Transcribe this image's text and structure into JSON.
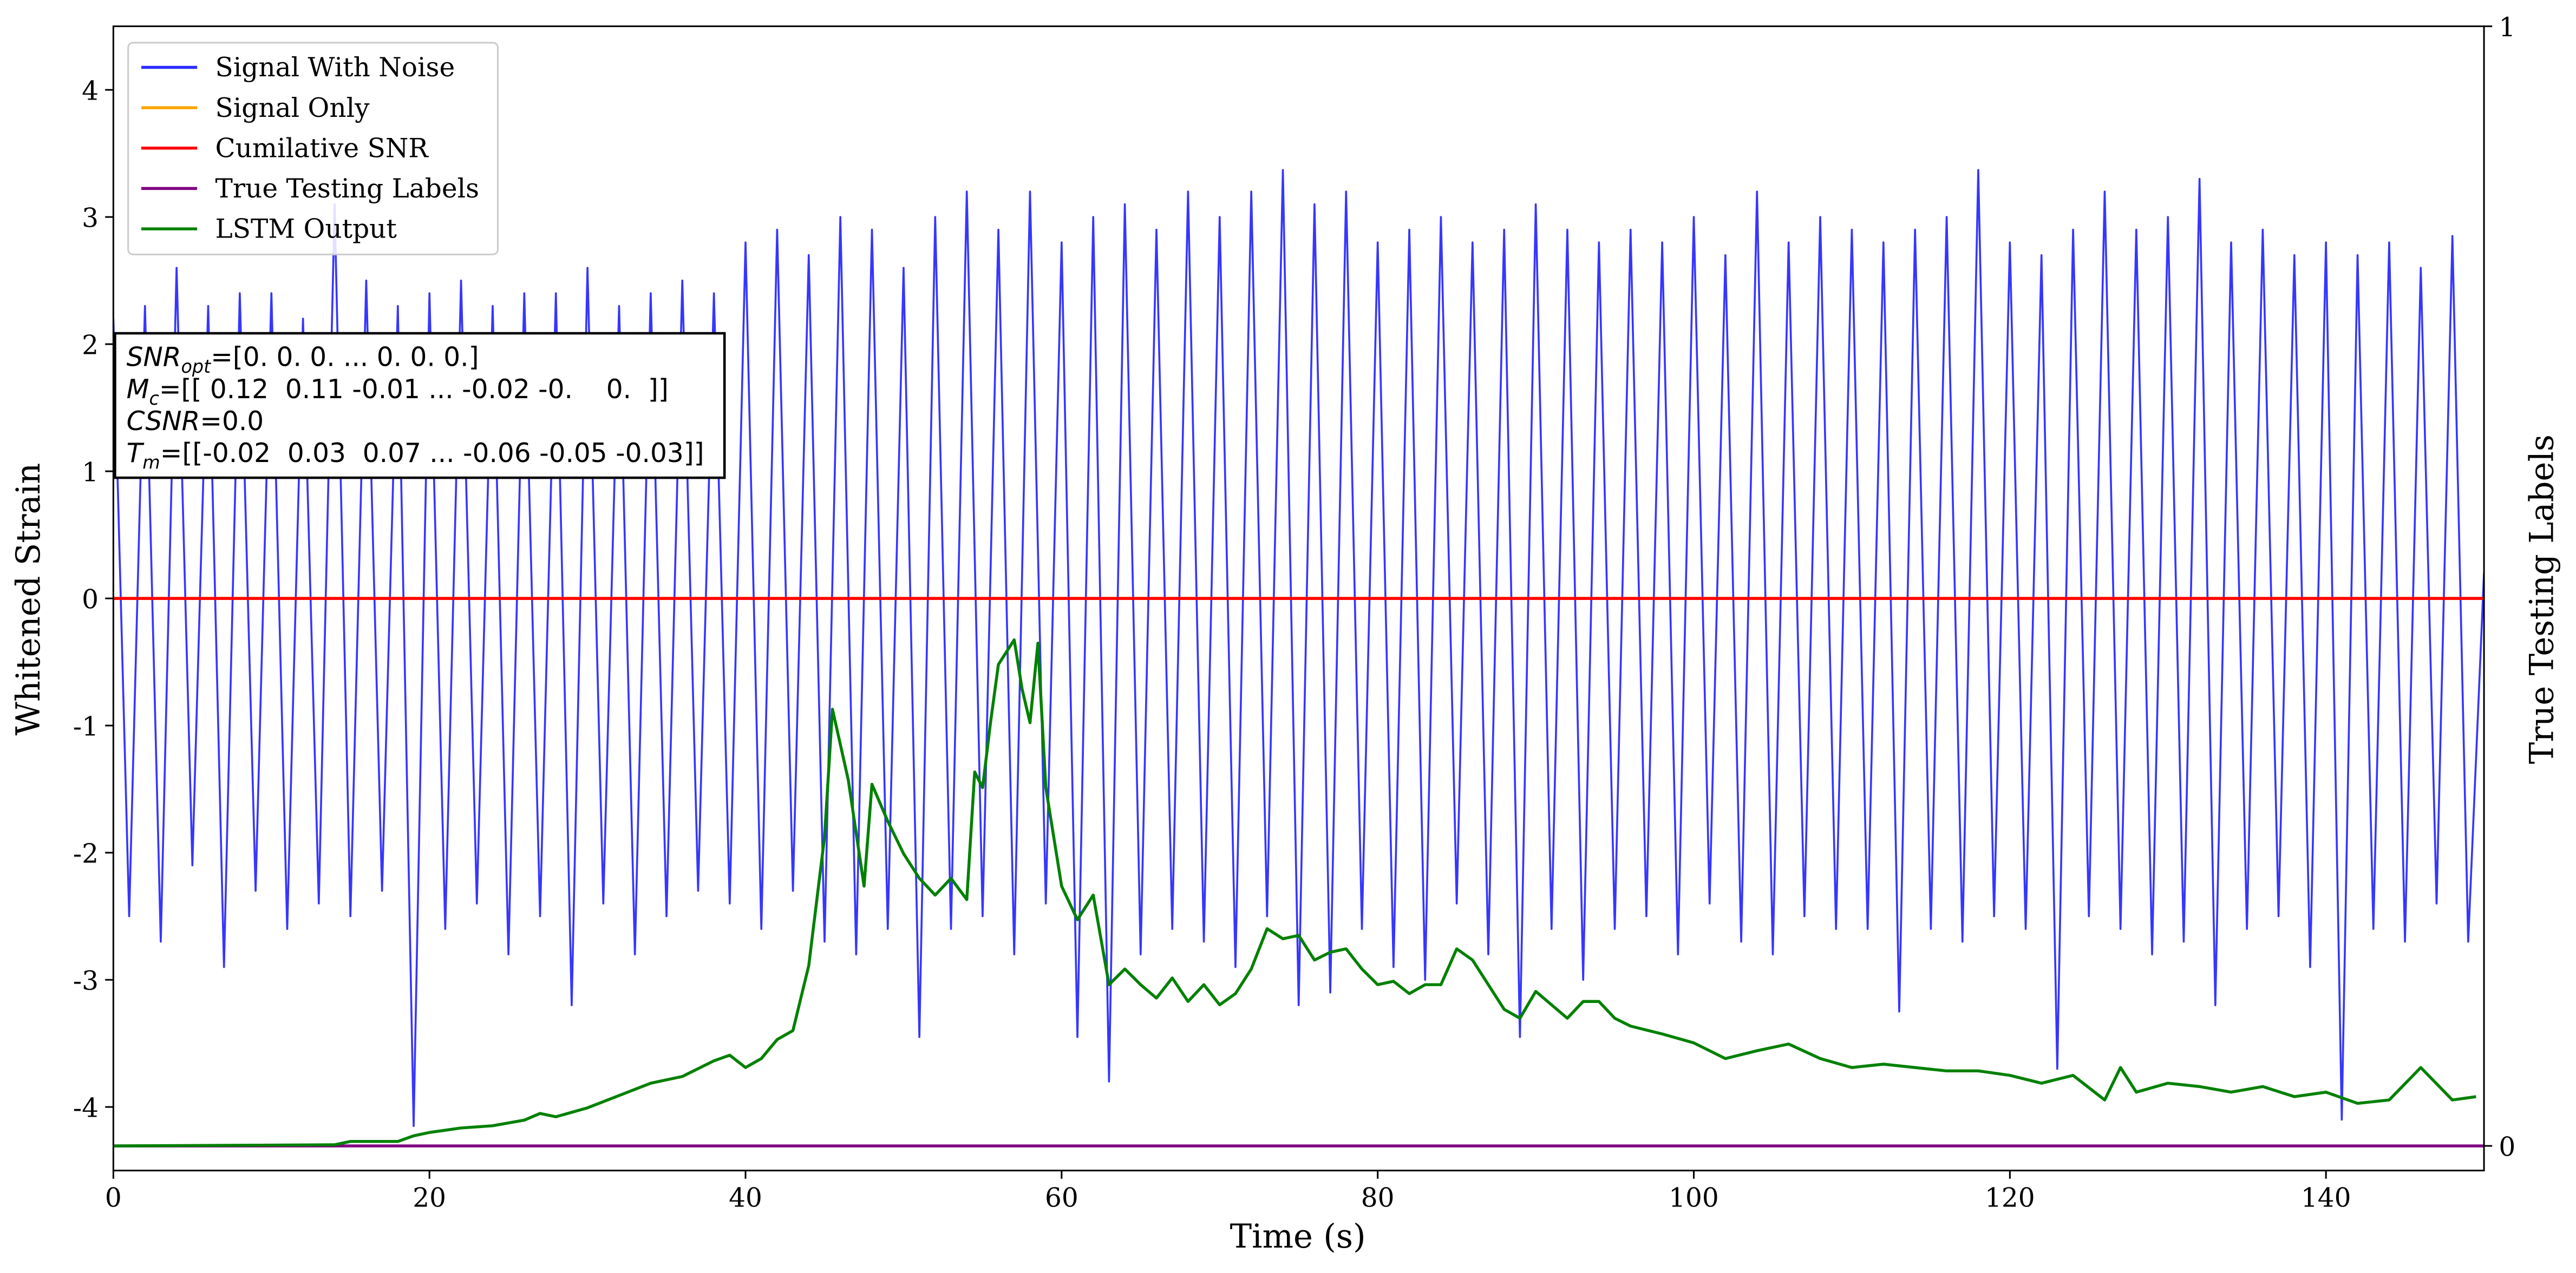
{
  "chart_data": {
    "type": "line",
    "xlabel": "Time (s)",
    "ylabel": "Whitened Strain",
    "y2label": "True Testing Labels",
    "xlim": [
      0,
      150
    ],
    "xticks": [
      0,
      20,
      40,
      60,
      80,
      100,
      120,
      140
    ],
    "ylim": [
      -4.5,
      4.5
    ],
    "yticks": [
      -4,
      -3,
      -2,
      -1,
      0,
      1,
      2,
      3,
      4
    ],
    "y2lim": [
      -0.022,
      1
    ],
    "y2ticks": [
      0,
      1
    ],
    "grid": false,
    "legend": "upper left",
    "series": [
      {
        "name": "Signal With Noise",
        "color": "#2b2bff",
        "axis": "y",
        "x": [
          0,
          1,
          2,
          3,
          4,
          5,
          6,
          7,
          8,
          9,
          10,
          11,
          12,
          13,
          14,
          15,
          16,
          17,
          18,
          19,
          20,
          21,
          22,
          23,
          24,
          25,
          26,
          27,
          28,
          29,
          30,
          31,
          32,
          33,
          34,
          35,
          36,
          37,
          38,
          39,
          40,
          41,
          42,
          43,
          44,
          45,
          46,
          47,
          48,
          49,
          50,
          51,
          52,
          53,
          54,
          55,
          56,
          57,
          58,
          59,
          60,
          61,
          62,
          63,
          64,
          65,
          66,
          67,
          68,
          69,
          70,
          71,
          72,
          73,
          74,
          75,
          76,
          77,
          78,
          79,
          80,
          81,
          82,
          83,
          84,
          85,
          86,
          87,
          88,
          89,
          90,
          91,
          92,
          93,
          94,
          95,
          96,
          97,
          98,
          99,
          100,
          101,
          102,
          103,
          104,
          105,
          106,
          107,
          108,
          109,
          110,
          111,
          112,
          113,
          114,
          115,
          116,
          117,
          118,
          119,
          120,
          121,
          122,
          123,
          124,
          125,
          126,
          127,
          128,
          129,
          130,
          131,
          132,
          133,
          134,
          135,
          136,
          137,
          138,
          139,
          140,
          141,
          142,
          143,
          144,
          145,
          146,
          147,
          148,
          149,
          150
        ],
        "values": [
          2.2,
          -2.5,
          2.3,
          -2.7,
          2.6,
          -2.1,
          2.3,
          -2.9,
          2.4,
          -2.3,
          2.4,
          -2.6,
          2.2,
          -2.4,
          3.1,
          -2.5,
          2.5,
          -2.3,
          2.3,
          -4.15,
          2.4,
          -2.6,
          2.5,
          -2.4,
          2.3,
          -2.8,
          2.4,
          -2.5,
          2.4,
          -3.2,
          2.6,
          -2.4,
          2.3,
          -2.8,
          2.4,
          -2.5,
          2.5,
          -2.3,
          2.4,
          -2.4,
          2.8,
          -2.6,
          2.9,
          -2.3,
          2.7,
          -2.7,
          3.0,
          -2.8,
          2.9,
          -2.6,
          2.6,
          -3.45,
          3.0,
          -2.6,
          3.2,
          -2.5,
          2.9,
          -2.8,
          3.2,
          -2.4,
          2.8,
          -3.45,
          3.0,
          -3.8,
          3.1,
          -2.8,
          2.9,
          -2.6,
          3.2,
          -2.7,
          3.0,
          -2.9,
          3.2,
          -2.5,
          3.37,
          -3.2,
          3.1,
          -3.1,
          3.2,
          -2.6,
          2.8,
          -2.9,
          2.9,
          -3.0,
          3.0,
          -2.4,
          2.8,
          -2.8,
          2.9,
          -3.45,
          3.1,
          -2.6,
          2.9,
          -3.0,
          2.8,
          -2.6,
          2.9,
          -2.5,
          2.8,
          -2.8,
          3.0,
          -2.4,
          2.7,
          -2.7,
          3.2,
          -2.8,
          2.8,
          -2.5,
          3.0,
          -2.6,
          2.9,
          -2.6,
          2.8,
          -3.25,
          2.9,
          -2.6,
          3.0,
          -2.7,
          3.37,
          -2.5,
          2.8,
          -2.6,
          2.7,
          -3.7,
          2.9,
          -2.5,
          3.2,
          -2.6,
          2.9,
          -2.8,
          3.0,
          -2.7,
          3.3,
          -3.2,
          2.8,
          -2.6,
          2.9,
          -2.5,
          2.7,
          -2.9,
          2.8,
          -4.1,
          2.7,
          -2.6,
          2.8,
          -2.7,
          2.6,
          -2.4,
          2.85,
          -2.7,
          0.2
        ]
      },
      {
        "name": "Signal Only",
        "color": "#ffa500",
        "axis": "y",
        "x": [
          0,
          150
        ],
        "values": [
          0,
          0
        ]
      },
      {
        "name": "Cumilative SNR",
        "color": "#ff0000",
        "axis": "y",
        "x": [
          0,
          150
        ],
        "values": [
          0,
          0
        ]
      },
      {
        "name": "True Testing Labels",
        "color": "#800080",
        "axis": "y2",
        "x": [
          0,
          150
        ],
        "values": [
          0,
          0
        ]
      },
      {
        "name": "LSTM Output",
        "color": "#008000",
        "axis": "y2",
        "x": [
          0,
          14,
          15,
          18,
          19,
          20,
          22,
          24,
          26,
          27,
          28,
          30,
          32,
          34,
          36,
          38,
          39,
          40,
          41,
          42,
          43,
          44,
          45,
          45.5,
          46.5,
          47.5,
          48,
          49,
          50,
          51,
          52,
          53,
          54,
          54.5,
          55,
          55.5,
          56,
          57,
          57.5,
          58,
          58.5,
          59,
          60,
          61,
          62,
          63,
          64,
          65,
          66,
          67,
          68,
          69,
          70,
          71,
          72,
          73,
          74,
          75,
          76,
          77,
          78,
          79,
          80,
          81,
          82,
          83,
          84,
          85,
          86,
          87,
          88,
          89,
          90,
          91,
          92,
          93,
          94,
          95,
          96,
          98,
          100,
          102,
          104,
          106,
          108,
          110,
          112,
          114,
          116,
          118,
          120,
          122,
          124,
          126,
          127,
          128,
          130,
          132,
          134,
          136,
          138,
          140,
          142,
          144,
          146,
          148,
          149.5
        ],
        "values": [
          0,
          0.001,
          0.004,
          0.004,
          0.009,
          0.012,
          0.016,
          0.018,
          0.023,
          0.029,
          0.026,
          0.034,
          0.045,
          0.056,
          0.062,
          0.076,
          0.081,
          0.07,
          0.078,
          0.095,
          0.103,
          0.161,
          0.276,
          0.39,
          0.327,
          0.232,
          0.323,
          0.29,
          0.261,
          0.239,
          0.224,
          0.239,
          0.22,
          0.334,
          0.32,
          0.378,
          0.43,
          0.452,
          0.408,
          0.378,
          0.449,
          0.32,
          0.232,
          0.202,
          0.224,
          0.144,
          0.158,
          0.144,
          0.132,
          0.15,
          0.129,
          0.144,
          0.126,
          0.136,
          0.158,
          0.194,
          0.185,
          0.188,
          0.166,
          0.173,
          0.176,
          0.158,
          0.144,
          0.147,
          0.136,
          0.144,
          0.144,
          0.176,
          0.166,
          0.144,
          0.122,
          0.114,
          0.138,
          0.126,
          0.114,
          0.129,
          0.129,
          0.114,
          0.107,
          0.1,
          0.092,
          0.078,
          0.085,
          0.091,
          0.078,
          0.07,
          0.073,
          0.07,
          0.067,
          0.067,
          0.063,
          0.056,
          0.063,
          0.041,
          0.07,
          0.048,
          0.056,
          0.053,
          0.048,
          0.053,
          0.044,
          0.048,
          0.038,
          0.041,
          0.07,
          0.041,
          0.044
        ]
      }
    ],
    "annotation": [
      {
        "math": "SNR",
        "sub": "opt",
        "text": "=[0. 0. 0. ... 0. 0. 0.]"
      },
      {
        "math": "M",
        "sub": "c",
        "text": "=[[ 0.12  0.11 -0.01 ... -0.02 -0.    0.  ]]"
      },
      {
        "math": "CSNR",
        "text": "=0.0"
      },
      {
        "math": "T",
        "sub": "m",
        "text": "=[[-0.02  0.03  0.07 ... -0.06 -0.05 -0.03]]"
      }
    ]
  }
}
